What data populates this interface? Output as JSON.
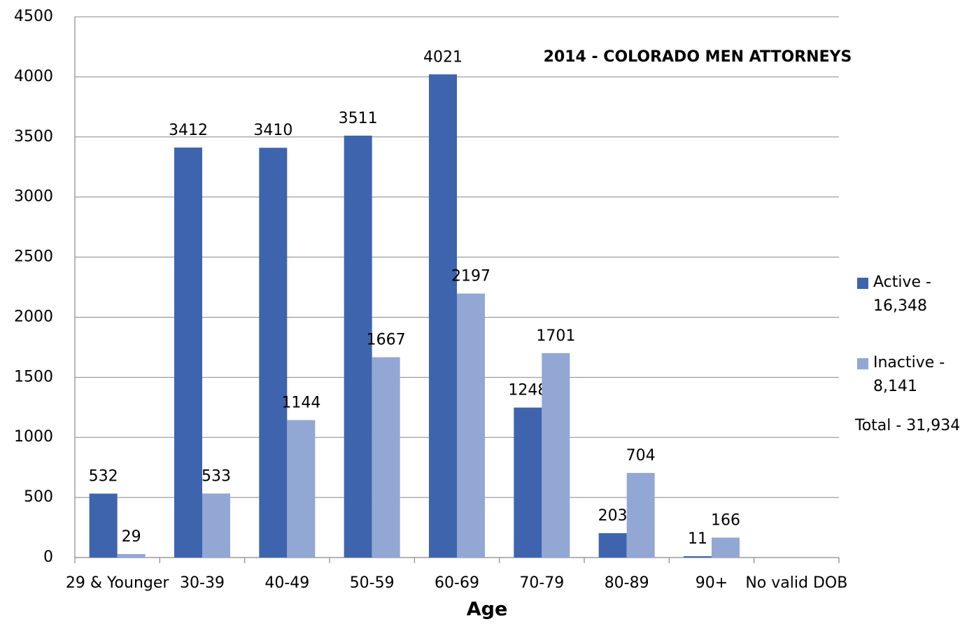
{
  "chart_data": {
    "type": "bar",
    "title": "2014 - COLORADO MEN ATTORNEYS",
    "x_label": "Age",
    "categories": [
      "29 & Younger",
      "30-39",
      "40-49",
      "50-59",
      "60-69",
      "70-79",
      "80-89",
      "90+",
      "No valid DOB"
    ],
    "series": [
      {
        "name": "Active - 16,348",
        "color": "#3d64ad",
        "values": [
          532,
          3412,
          3410,
          3511,
          4021,
          1248,
          203,
          11,
          null
        ]
      },
      {
        "name": "Inactive - 8,141",
        "color": "#93a7d5",
        "values": [
          29,
          533,
          1144,
          1667,
          2197,
          1701,
          704,
          166,
          null
        ]
      }
    ],
    "annotations": [
      "Total - 31,934"
    ],
    "ylim": [
      0,
      4500
    ],
    "yticks": [
      0,
      500,
      1000,
      1500,
      2000,
      2500,
      3000,
      3500,
      4000,
      4500
    ],
    "grid": true,
    "legend": "right"
  }
}
